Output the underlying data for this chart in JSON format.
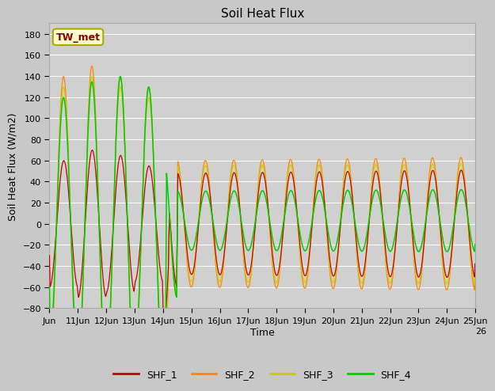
{
  "title": "Soil Heat Flux",
  "ylabel": "Soil Heat Flux (W/m2)",
  "xlabel": "Time",
  "ylim": [
    -80,
    190
  ],
  "yticks": [
    -80,
    -60,
    -40,
    -20,
    0,
    20,
    40,
    60,
    80,
    100,
    120,
    140,
    160,
    180
  ],
  "colors": {
    "SHF_1": "#cc0000",
    "SHF_2": "#ff8800",
    "SHF_3": "#cccc00",
    "SHF_4": "#00cc00"
  },
  "legend_labels": [
    "SHF_1",
    "SHF_2",
    "SHF_3",
    "SHF_4"
  ],
  "annotation_text": "TW_met",
  "annotation_box_facecolor": "#ffffcc",
  "annotation_box_edgecolor": "#aaaa00",
  "annotation_text_color": "#880000",
  "fig_facecolor": "#c8c8c8",
  "plot_facecolor": "#d0d0d0",
  "grid_color": "#ffffff",
  "title_fontsize": 11,
  "axis_label_fontsize": 9,
  "tick_label_fontsize": 8
}
